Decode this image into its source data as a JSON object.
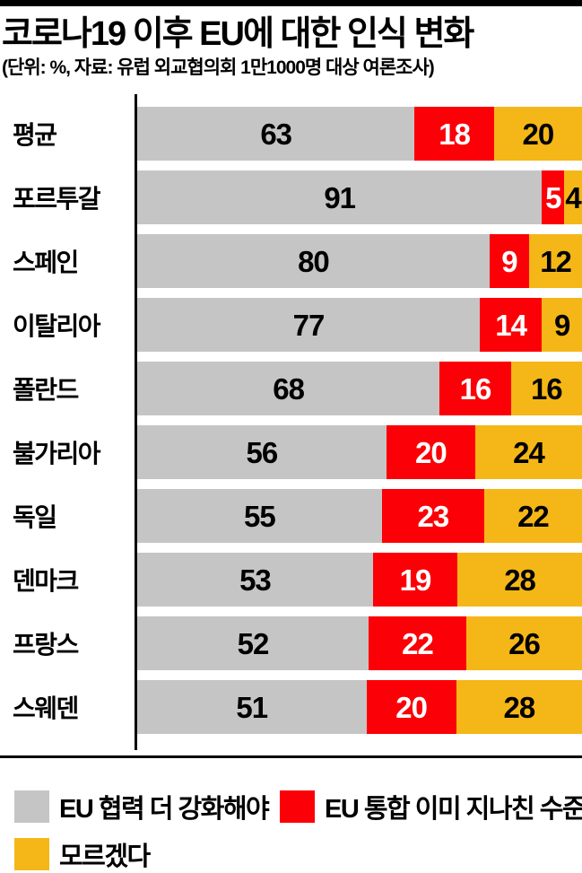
{
  "header": {
    "title": "코로나19 이후 EU에 대한 인식 변화",
    "subtitle": "(단위: %, 자료: 유럽 외교협의회 1만1000명 대상 여론조사)"
  },
  "colors": {
    "strengthen_gray": "#c5c5c5",
    "excessive_red": "#fb0006",
    "dontknow_yellow": "#f5b717",
    "axis": "#000000",
    "background": "#ffffff"
  },
  "chart_data": {
    "type": "bar",
    "orientation": "horizontal",
    "stacked": true,
    "unit": "%",
    "value_labels_shown": true,
    "axis": "single vertical baseline at left, bars span to full right edge, no gridlines, no tick labels",
    "categories": [
      "평균",
      "포르투갈",
      "스페인",
      "이탈리아",
      "폴란드",
      "불가리아",
      "독일",
      "덴마크",
      "프랑스",
      "스웨덴"
    ],
    "series": [
      {
        "name": "EU 협력 더 강화해야",
        "color": "#c5c5c5",
        "text_color": "#000000",
        "values": [
          63,
          91,
          80,
          77,
          68,
          56,
          55,
          53,
          52,
          51
        ]
      },
      {
        "name": "EU 통합 이미 지나친 수준",
        "color": "#fb0006",
        "text_color": "#ffffff",
        "values": [
          18,
          5,
          9,
          14,
          16,
          20,
          23,
          19,
          22,
          20
        ]
      },
      {
        "name": "모르겠다",
        "color": "#f5b717",
        "text_color": "#000000",
        "values": [
          20,
          4,
          12,
          9,
          16,
          24,
          22,
          28,
          26,
          28
        ]
      }
    ]
  },
  "legend": {
    "items": [
      {
        "label": "EU 협력 더 강화해야",
        "color": "#c5c5c5"
      },
      {
        "label": "EU 통합 이미 지나친 수준",
        "color": "#fb0006"
      },
      {
        "label": "모르겠다",
        "color": "#f5b717"
      }
    ]
  }
}
